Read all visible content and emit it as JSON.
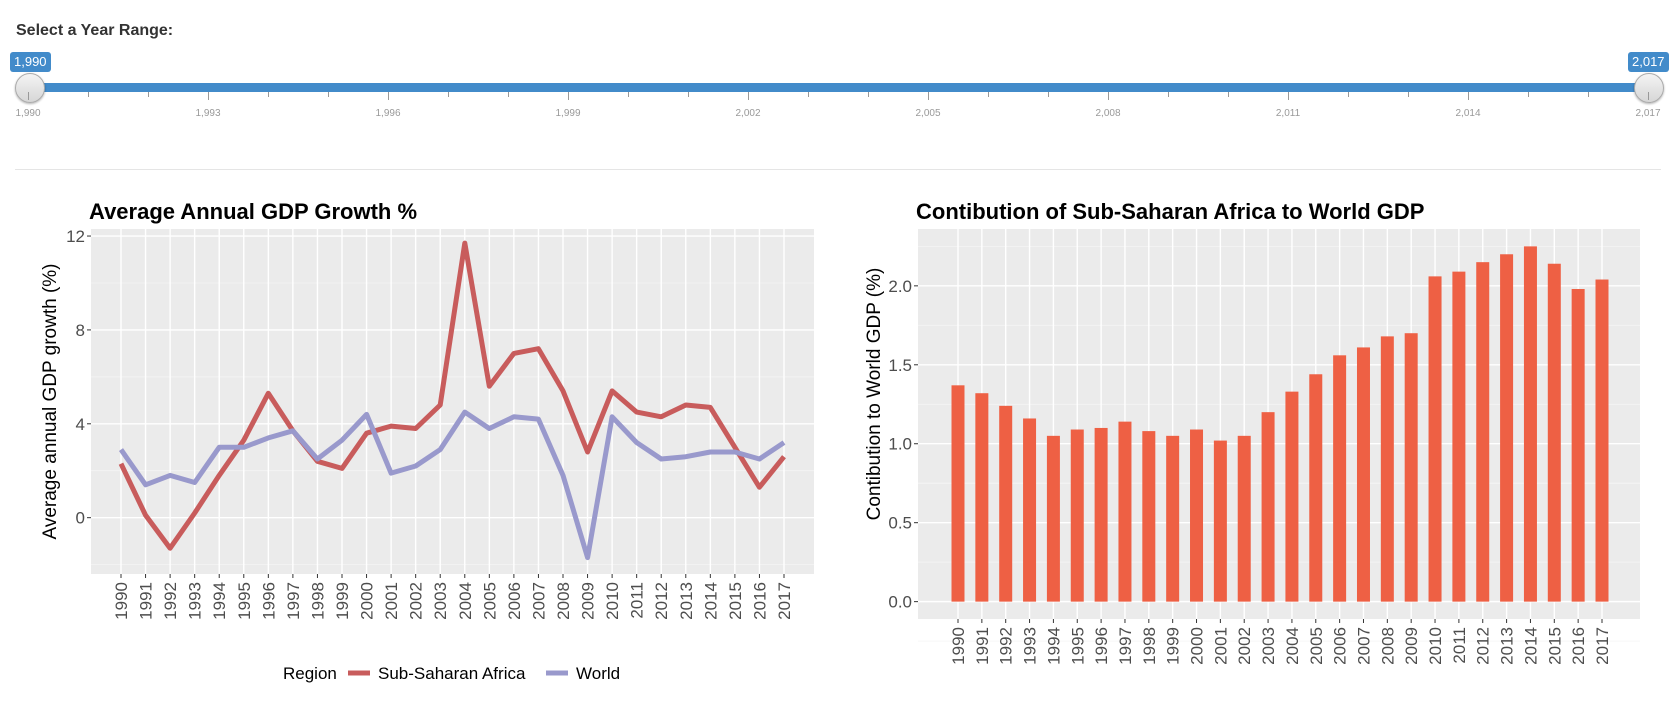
{
  "slider": {
    "label": "Select a Year Range:",
    "from_label": "1,990",
    "to_label": "2,017",
    "min": 1990,
    "max": 2017,
    "from": 1990,
    "to": 2017,
    "tick_labels": [
      "1,990",
      "1,993",
      "1,996",
      "1,999",
      "2,002",
      "2,005",
      "2,008",
      "2,011",
      "2,014",
      "2,017"
    ],
    "accent": "#428bca"
  },
  "chart_data": [
    {
      "type": "line",
      "title": "Average Annual GDP Growth %",
      "xlabel": "",
      "ylabel": "Average annual GDP growth (%)",
      "x": [
        1990,
        1991,
        1992,
        1993,
        1994,
        1995,
        1996,
        1997,
        1998,
        1999,
        2000,
        2001,
        2002,
        2003,
        2004,
        2005,
        2006,
        2007,
        2008,
        2009,
        2010,
        2011,
        2012,
        2013,
        2014,
        2015,
        2016,
        2017
      ],
      "y_ticks": [
        0,
        4,
        8,
        12
      ],
      "ylim": [
        -2.4,
        12.3
      ],
      "grid": true,
      "legend": {
        "title": "Region",
        "placement": "bottom"
      },
      "series": [
        {
          "name": "Sub-Saharan Africa",
          "color": "#c85c5c",
          "values": [
            2.3,
            0.1,
            -1.3,
            0.2,
            1.8,
            3.3,
            5.3,
            3.7,
            2.4,
            2.1,
            3.6,
            3.9,
            3.8,
            4.8,
            11.7,
            5.6,
            7.0,
            7.2,
            5.4,
            2.8,
            5.4,
            4.5,
            4.3,
            4.8,
            4.7,
            3.0,
            1.3,
            2.6
          ]
        },
        {
          "name": "World",
          "color": "#9999cc",
          "values": [
            2.9,
            1.4,
            1.8,
            1.5,
            3.0,
            3.0,
            3.4,
            3.7,
            2.5,
            3.3,
            4.4,
            1.9,
            2.2,
            2.9,
            4.5,
            3.8,
            4.3,
            4.2,
            1.8,
            -1.7,
            4.3,
            3.2,
            2.5,
            2.6,
            2.8,
            2.8,
            2.5,
            3.2
          ]
        }
      ]
    },
    {
      "type": "bar",
      "title": "Contibution of Sub-Saharan Africa to World GDP",
      "xlabel": "",
      "ylabel": "Contibution to World GDP (%)",
      "categories": [
        "1990",
        "1991",
        "1992",
        "1993",
        "1994",
        "1995",
        "1996",
        "1997",
        "1998",
        "1999",
        "2000",
        "2001",
        "2002",
        "2003",
        "2004",
        "2005",
        "2006",
        "2007",
        "2008",
        "2009",
        "2010",
        "2011",
        "2012",
        "2013",
        "2014",
        "2015",
        "2016",
        "2017"
      ],
      "values": [
        1.37,
        1.32,
        1.24,
        1.16,
        1.05,
        1.09,
        1.1,
        1.14,
        1.08,
        1.05,
        1.09,
        1.02,
        1.05,
        1.2,
        1.33,
        1.44,
        1.56,
        1.61,
        1.68,
        1.7,
        2.06,
        2.09,
        2.15,
        2.2,
        2.25,
        2.14,
        1.98,
        2.04
      ],
      "y_ticks": [
        "0.0",
        "0.5",
        "1.0",
        "1.5",
        "2.0"
      ],
      "ylim": [
        -0.11,
        2.36
      ],
      "grid": true,
      "color": "#ee6044"
    }
  ]
}
